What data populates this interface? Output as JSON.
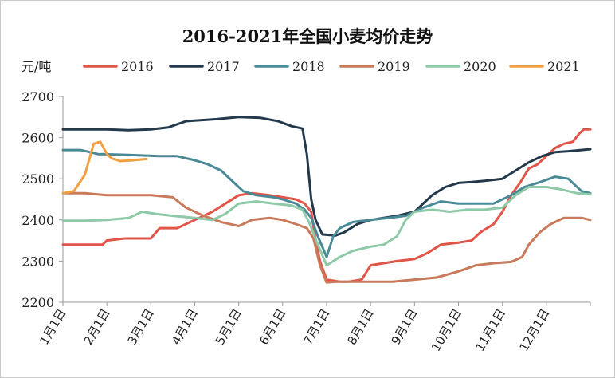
{
  "chart_data": {
    "type": "line",
    "title": "2016-2021年全国小麦均价走势",
    "ylabel": "元/吨",
    "ylim": [
      2200,
      2700
    ],
    "yticks": [
      2200,
      2300,
      2400,
      2500,
      2600,
      2700
    ],
    "xlim": [
      0,
      12
    ],
    "x_tick_labels": [
      "1月1日",
      "2月1日",
      "3月1日",
      "4月1日",
      "5月1日",
      "6月1日",
      "7月1日",
      "8月1日",
      "9月1日",
      "10月1日",
      "11月1日",
      "12月1日"
    ],
    "grid": false,
    "legend_position": "top",
    "series": [
      {
        "name": "2016",
        "color": "#e05548",
        "points": [
          [
            0.0,
            2340
          ],
          [
            0.9,
            2340
          ],
          [
            1.0,
            2350
          ],
          [
            1.4,
            2355
          ],
          [
            2.0,
            2355
          ],
          [
            2.2,
            2380
          ],
          [
            2.6,
            2380
          ],
          [
            3.0,
            2400
          ],
          [
            3.4,
            2420
          ],
          [
            3.7,
            2440
          ],
          [
            4.0,
            2460
          ],
          [
            4.3,
            2465
          ],
          [
            4.7,
            2460
          ],
          [
            5.0,
            2455
          ],
          [
            5.3,
            2450
          ],
          [
            5.5,
            2440
          ],
          [
            5.65,
            2420
          ],
          [
            5.75,
            2350
          ],
          [
            5.85,
            2300
          ],
          [
            6.0,
            2255
          ],
          [
            6.3,
            2250
          ],
          [
            6.5,
            2250
          ],
          [
            6.8,
            2255
          ],
          [
            7.0,
            2290
          ],
          [
            7.3,
            2295
          ],
          [
            7.6,
            2300
          ],
          [
            8.0,
            2305
          ],
          [
            8.3,
            2320
          ],
          [
            8.6,
            2340
          ],
          [
            9.0,
            2345
          ],
          [
            9.3,
            2350
          ],
          [
            9.5,
            2370
          ],
          [
            9.8,
            2390
          ],
          [
            10.0,
            2420
          ],
          [
            10.2,
            2460
          ],
          [
            10.4,
            2490
          ],
          [
            10.6,
            2525
          ],
          [
            10.8,
            2535
          ],
          [
            11.0,
            2555
          ],
          [
            11.2,
            2575
          ],
          [
            11.4,
            2585
          ],
          [
            11.6,
            2590
          ],
          [
            11.75,
            2610
          ],
          [
            11.85,
            2620
          ],
          [
            12.0,
            2620
          ]
        ]
      },
      {
        "name": "2017",
        "color": "#243a4c",
        "points": [
          [
            0.0,
            2620
          ],
          [
            1.0,
            2620
          ],
          [
            1.5,
            2618
          ],
          [
            2.0,
            2620
          ],
          [
            2.4,
            2625
          ],
          [
            2.8,
            2640
          ],
          [
            3.5,
            2645
          ],
          [
            4.0,
            2650
          ],
          [
            4.5,
            2648
          ],
          [
            4.9,
            2640
          ],
          [
            5.2,
            2628
          ],
          [
            5.45,
            2622
          ],
          [
            5.55,
            2560
          ],
          [
            5.65,
            2450
          ],
          [
            5.75,
            2400
          ],
          [
            5.9,
            2365
          ],
          [
            6.2,
            2362
          ],
          [
            6.4,
            2370
          ],
          [
            6.7,
            2390
          ],
          [
            7.0,
            2400
          ],
          [
            7.3,
            2405
          ],
          [
            7.6,
            2410
          ],
          [
            8.0,
            2420
          ],
          [
            8.4,
            2460
          ],
          [
            8.7,
            2480
          ],
          [
            9.0,
            2490
          ],
          [
            9.3,
            2492
          ],
          [
            9.6,
            2495
          ],
          [
            10.0,
            2500
          ],
          [
            10.3,
            2520
          ],
          [
            10.6,
            2540
          ],
          [
            10.9,
            2555
          ],
          [
            11.2,
            2565
          ],
          [
            11.5,
            2567
          ],
          [
            11.8,
            2570
          ],
          [
            12.0,
            2572
          ]
        ]
      },
      {
        "name": "2018",
        "color": "#4a8a96",
        "points": [
          [
            0.0,
            2570
          ],
          [
            0.4,
            2570
          ],
          [
            0.8,
            2560
          ],
          [
            1.5,
            2558
          ],
          [
            2.2,
            2555
          ],
          [
            2.6,
            2555
          ],
          [
            3.0,
            2545
          ],
          [
            3.3,
            2535
          ],
          [
            3.6,
            2520
          ],
          [
            3.9,
            2490
          ],
          [
            4.1,
            2470
          ],
          [
            4.4,
            2460
          ],
          [
            4.8,
            2455
          ],
          [
            5.0,
            2450
          ],
          [
            5.3,
            2440
          ],
          [
            5.5,
            2425
          ],
          [
            5.65,
            2405
          ],
          [
            5.8,
            2360
          ],
          [
            6.0,
            2310
          ],
          [
            6.15,
            2360
          ],
          [
            6.3,
            2380
          ],
          [
            6.6,
            2395
          ],
          [
            7.0,
            2400
          ],
          [
            7.4,
            2405
          ],
          [
            7.8,
            2410
          ],
          [
            8.2,
            2430
          ],
          [
            8.6,
            2445
          ],
          [
            9.0,
            2440
          ],
          [
            9.4,
            2440
          ],
          [
            9.8,
            2440
          ],
          [
            10.2,
            2460
          ],
          [
            10.5,
            2480
          ],
          [
            10.8,
            2490
          ],
          [
            11.2,
            2505
          ],
          [
            11.5,
            2500
          ],
          [
            11.8,
            2470
          ],
          [
            12.0,
            2465
          ]
        ]
      },
      {
        "name": "2019",
        "color": "#c87a5a",
        "points": [
          [
            0.0,
            2465
          ],
          [
            0.5,
            2465
          ],
          [
            1.0,
            2460
          ],
          [
            1.5,
            2460
          ],
          [
            2.0,
            2460
          ],
          [
            2.5,
            2455
          ],
          [
            2.8,
            2430
          ],
          [
            3.2,
            2410
          ],
          [
            3.6,
            2395
          ],
          [
            4.0,
            2385
          ],
          [
            4.3,
            2400
          ],
          [
            4.7,
            2405
          ],
          [
            5.0,
            2400
          ],
          [
            5.3,
            2390
          ],
          [
            5.55,
            2380
          ],
          [
            5.7,
            2355
          ],
          [
            5.85,
            2290
          ],
          [
            6.0,
            2248
          ],
          [
            6.2,
            2250
          ],
          [
            6.6,
            2250
          ],
          [
            7.0,
            2250
          ],
          [
            7.5,
            2250
          ],
          [
            8.0,
            2255
          ],
          [
            8.5,
            2260
          ],
          [
            9.0,
            2275
          ],
          [
            9.4,
            2290
          ],
          [
            9.8,
            2295
          ],
          [
            10.2,
            2298
          ],
          [
            10.45,
            2310
          ],
          [
            10.6,
            2340
          ],
          [
            10.85,
            2370
          ],
          [
            11.1,
            2390
          ],
          [
            11.4,
            2405
          ],
          [
            11.8,
            2405
          ],
          [
            12.0,
            2400
          ]
        ]
      },
      {
        "name": "2020",
        "color": "#8fcaa8",
        "points": [
          [
            0.0,
            2398
          ],
          [
            0.5,
            2398
          ],
          [
            1.0,
            2400
          ],
          [
            1.5,
            2405
          ],
          [
            1.8,
            2420
          ],
          [
            2.1,
            2415
          ],
          [
            2.5,
            2410
          ],
          [
            3.0,
            2405
          ],
          [
            3.4,
            2400
          ],
          [
            3.7,
            2415
          ],
          [
            4.0,
            2440
          ],
          [
            4.4,
            2445
          ],
          [
            4.8,
            2440
          ],
          [
            5.2,
            2435
          ],
          [
            5.45,
            2425
          ],
          [
            5.6,
            2395
          ],
          [
            5.8,
            2340
          ],
          [
            6.0,
            2290
          ],
          [
            6.3,
            2310
          ],
          [
            6.6,
            2325
          ],
          [
            7.0,
            2335
          ],
          [
            7.3,
            2340
          ],
          [
            7.6,
            2360
          ],
          [
            7.8,
            2400
          ],
          [
            8.0,
            2420
          ],
          [
            8.4,
            2425
          ],
          [
            8.8,
            2420
          ],
          [
            9.2,
            2425
          ],
          [
            9.6,
            2425
          ],
          [
            10.0,
            2430
          ],
          [
            10.3,
            2460
          ],
          [
            10.6,
            2480
          ],
          [
            11.0,
            2480
          ],
          [
            11.3,
            2475
          ],
          [
            11.7,
            2465
          ],
          [
            12.0,
            2462
          ]
        ]
      },
      {
        "name": "2021",
        "color": "#f0a040",
        "points": [
          [
            0.0,
            2465
          ],
          [
            0.25,
            2470
          ],
          [
            0.5,
            2510
          ],
          [
            0.7,
            2585
          ],
          [
            0.85,
            2590
          ],
          [
            1.0,
            2560
          ],
          [
            1.1,
            2550
          ],
          [
            1.3,
            2543
          ],
          [
            1.6,
            2545
          ],
          [
            1.9,
            2548
          ]
        ]
      }
    ]
  }
}
